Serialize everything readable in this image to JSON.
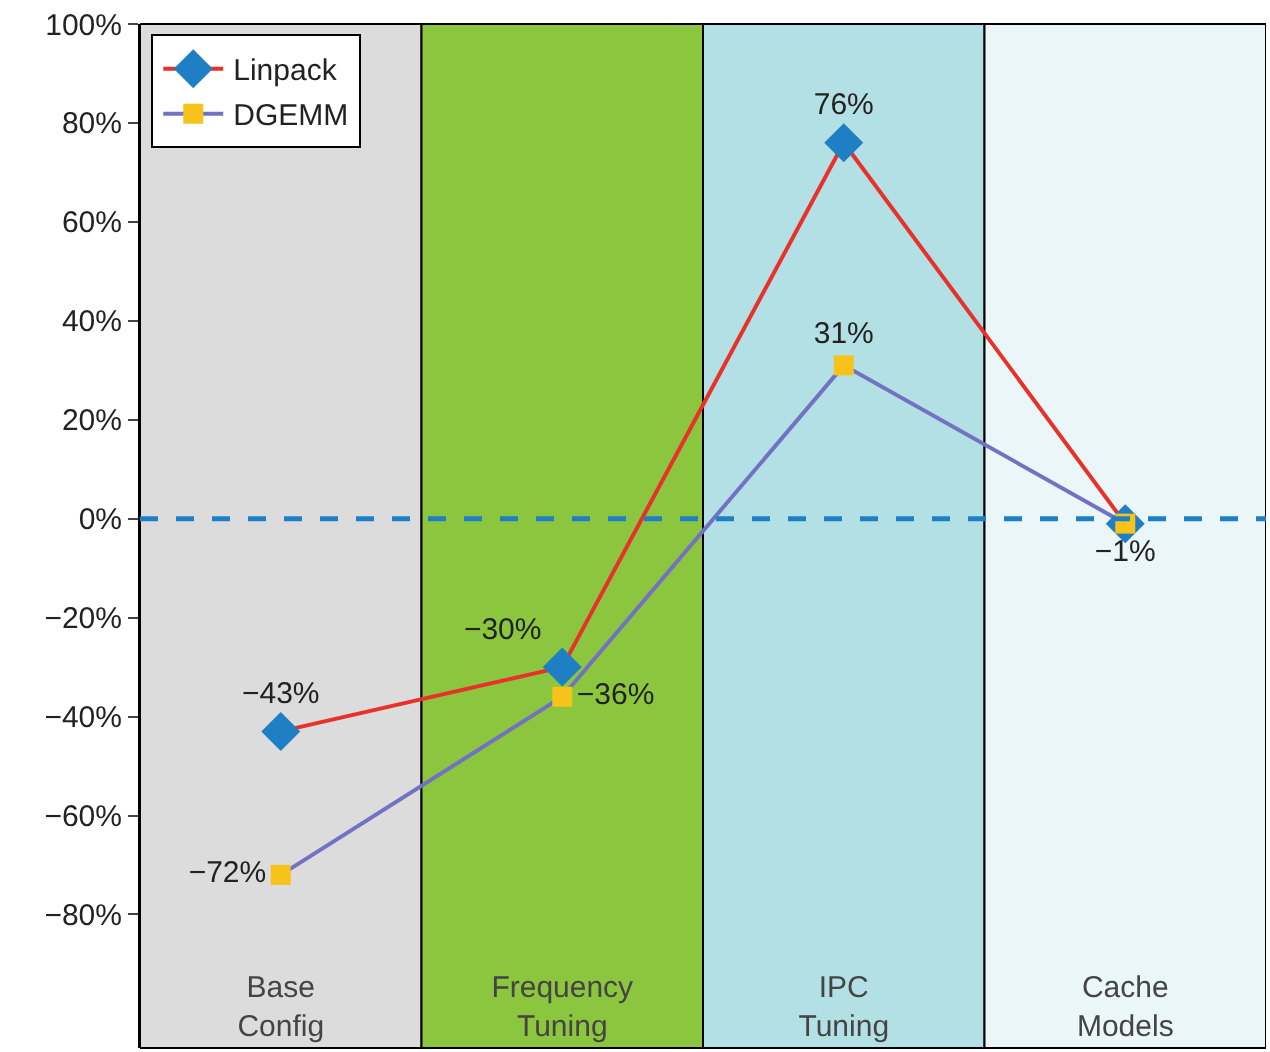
{
  "chart_data": {
    "type": "line",
    "categories": [
      "Base\nConfig",
      "Frequency\nTuning",
      "IPC\nTuning",
      "Cache\nModels"
    ],
    "series": [
      {
        "name": "Linpack",
        "color": "#e8312a",
        "colors": [
          "#1f7fc4",
          "#1f7fc4",
          "#1f7fc4",
          "#1f7fc4"
        ],
        "marker": "diamond",
        "values": [
          -43,
          -30,
          76,
          -1
        ],
        "value_labels": [
          "−43%",
          "−30%",
          "76%",
          null
        ]
      },
      {
        "name": "DGEMM",
        "color": "#7272c2",
        "colors": [
          "#f7c21a",
          "#f7c21a",
          "#f7c21a",
          "#f7c21a"
        ],
        "marker": "square",
        "values": [
          -72,
          -36,
          31,
          -1
        ],
        "value_labels": [
          "−72%",
          "−36%",
          "31%",
          "−1%"
        ]
      }
    ],
    "ylim": [
      -107,
      100
    ],
    "yticks": [
      {
        "value": -80,
        "label": "−80%"
      },
      {
        "value": -60,
        "label": "−60%"
      },
      {
        "value": -40,
        "label": "−40%"
      },
      {
        "value": -20,
        "label": "−20%"
      },
      {
        "value": 0,
        "label": "0%"
      },
      {
        "value": 20,
        "label": "20%"
      },
      {
        "value": 40,
        "label": "40%"
      },
      {
        "value": 60,
        "label": "60%"
      },
      {
        "value": 80,
        "label": "80%"
      },
      {
        "value": 100,
        "label": "100%"
      }
    ],
    "bands": [
      {
        "axis": "x",
        "from": "Base\nConfig",
        "to": "Base\nConfig",
        "color": "#dcdcdd"
      },
      {
        "axis": "x",
        "from": "Frequency\nTuning",
        "to": "Frequency\nTuning",
        "color": "#8cc63f"
      },
      {
        "axis": "x",
        "from": "IPC\nTuning",
        "to": "IPC\nTuning",
        "color": "#b3e0e4"
      },
      {
        "axis": "x",
        "from": "Cache\nModels",
        "to": "Cache\nModels",
        "color": "#eaf6f8"
      }
    ],
    "ref_lines": [
      {
        "axis": "y",
        "value": 0,
        "color": "#1f7fc4",
        "line_style": "dashed"
      }
    ],
    "legend": "top left",
    "grid": false,
    "line_style": "solid"
  }
}
